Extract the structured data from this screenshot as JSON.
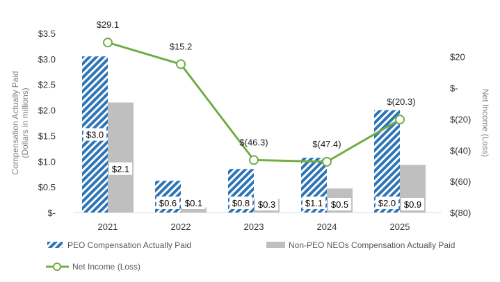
{
  "chart_data": {
    "type": "bar",
    "categories": [
      "2021",
      "2022",
      "2023",
      "2024",
      "2025"
    ],
    "series": [
      {
        "name": "PEO Compensation Actually Paid",
        "axis": "left",
        "style": "hatched",
        "color": "#2E75B6",
        "values": [
          3.05,
          0.62,
          0.85,
          1.07,
          2.0
        ],
        "labels": [
          "$3.0",
          "$0.6",
          "$0.8",
          "$1.1",
          "$2.0"
        ]
      },
      {
        "name": "Non-PEO NEOs Compensation Actually Paid",
        "axis": "left",
        "style": "solid",
        "color": "#BFBFBF",
        "values": [
          2.15,
          0.1,
          0.27,
          0.47,
          0.93
        ],
        "labels": [
          "$2.1",
          "$0.1",
          "$0.3",
          "$0.5",
          "$0.9"
        ]
      },
      {
        "name": "Net Income (Loss)",
        "axis": "right",
        "type": "line",
        "color": "#70AD47",
        "values": [
          29.1,
          15.2,
          -46.3,
          -47.4,
          -20.3
        ],
        "labels": [
          "$29.1",
          "$15.2",
          "$(46.3)",
          "$(47.4)",
          "$(20.3)"
        ]
      }
    ],
    "y_left": {
      "title_lines": [
        "Compensation Actually Paid",
        "(Dollars in millions)"
      ],
      "ylim": [
        0,
        3.5
      ],
      "ticks": [
        0,
        0.5,
        1.0,
        1.5,
        2.0,
        2.5,
        3.0,
        3.5
      ],
      "tick_labels": [
        "$-",
        "$0.5",
        "$1.0",
        "$1.5",
        "$2.0",
        "$2.5",
        "$3.0",
        "$3.5"
      ]
    },
    "y_right": {
      "title": "Net Income (Loss)",
      "ylim": [
        -80,
        35
      ],
      "ticks": [
        20,
        0,
        -20,
        -40,
        -60,
        -80
      ],
      "tick_labels": [
        "$20",
        "$-",
        "$(20)",
        "$(40)",
        "$(60)",
        "$(80)"
      ]
    },
    "legend": {
      "placement": "bottom",
      "entries": [
        "PEO Compensation Actually Paid",
        "Non-PEO NEOs Compensation Actually Paid",
        "Net Income (Loss)"
      ]
    },
    "grid": false
  }
}
